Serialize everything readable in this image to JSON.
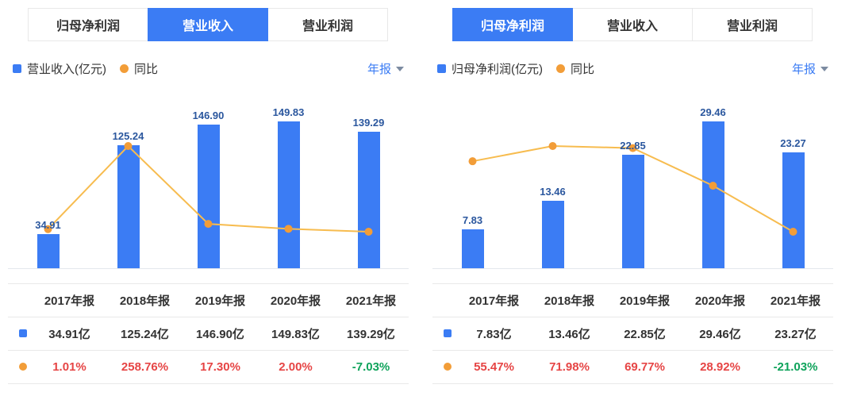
{
  "colors": {
    "bar_blue": "#3b7cf4",
    "line_orange": "#f7bc4f",
    "dot_orange": "#f29d38",
    "label_blue": "#2b579e",
    "up_red": "#e64545",
    "down_green": "#0fa35b",
    "accent_blue": "#3b7cf4"
  },
  "panels": [
    {
      "tabs": [
        {
          "label": "归母净利润",
          "active": false
        },
        {
          "label": "营业收入",
          "active": true
        },
        {
          "label": "营业利润",
          "active": false
        }
      ],
      "legend": {
        "bar_label": "营业收入(亿元)",
        "line_label": "同比"
      },
      "period_selector": {
        "label": "年报"
      },
      "chart_data": {
        "type": "bar+line",
        "categories": [
          "2017年报",
          "2018年报",
          "2019年报",
          "2020年报",
          "2021年报"
        ],
        "series": [
          {
            "name": "营业收入(亿元)",
            "type": "bar",
            "unit": "亿元",
            "values": [
              34.91,
              125.24,
              146.9,
              149.83,
              139.29
            ]
          },
          {
            "name": "同比",
            "type": "line",
            "unit": "%",
            "values": [
              1.01,
              258.76,
              17.3,
              2.0,
              -7.03
            ]
          }
        ],
        "legend_position": "top-left",
        "grid": false
      },
      "table": {
        "headers": [
          "2017年报",
          "2018年报",
          "2019年报",
          "2020年报",
          "2021年报"
        ],
        "rows": [
          {
            "series": "营业收入",
            "swatch": "bar",
            "values": [
              "34.91亿",
              "125.24亿",
              "146.90亿",
              "149.83亿",
              "139.29亿"
            ]
          },
          {
            "series": "同比",
            "swatch": "dot",
            "values": [
              "1.01%",
              "258.76%",
              "17.30%",
              "2.00%",
              "-7.03%"
            ]
          }
        ]
      }
    },
    {
      "tabs": [
        {
          "label": "归母净利润",
          "active": true
        },
        {
          "label": "营业收入",
          "active": false
        },
        {
          "label": "营业利润",
          "active": false
        }
      ],
      "legend": {
        "bar_label": "归母净利润(亿元)",
        "line_label": "同比"
      },
      "period_selector": {
        "label": "年报"
      },
      "chart_data": {
        "type": "bar+line",
        "categories": [
          "2017年报",
          "2018年报",
          "2019年报",
          "2020年报",
          "2021年报"
        ],
        "series": [
          {
            "name": "归母净利润(亿元)",
            "type": "bar",
            "unit": "亿元",
            "values": [
              7.83,
              13.46,
              22.85,
              29.46,
              23.27
            ]
          },
          {
            "name": "同比",
            "type": "line",
            "unit": "%",
            "values": [
              55.47,
              71.98,
              69.77,
              28.92,
              -21.03
            ]
          }
        ],
        "legend_position": "top-left",
        "grid": false
      },
      "table": {
        "headers": [
          "2017年报",
          "2018年报",
          "2019年报",
          "2020年报",
          "2021年报"
        ],
        "rows": [
          {
            "series": "归母净利润",
            "swatch": "bar",
            "values": [
              "7.83亿",
              "13.46亿",
              "22.85亿",
              "29.46亿",
              "23.27亿"
            ]
          },
          {
            "series": "同比",
            "swatch": "dot",
            "values": [
              "55.47%",
              "71.98%",
              "69.77%",
              "28.92%",
              "-21.03%"
            ]
          }
        ]
      }
    }
  ]
}
